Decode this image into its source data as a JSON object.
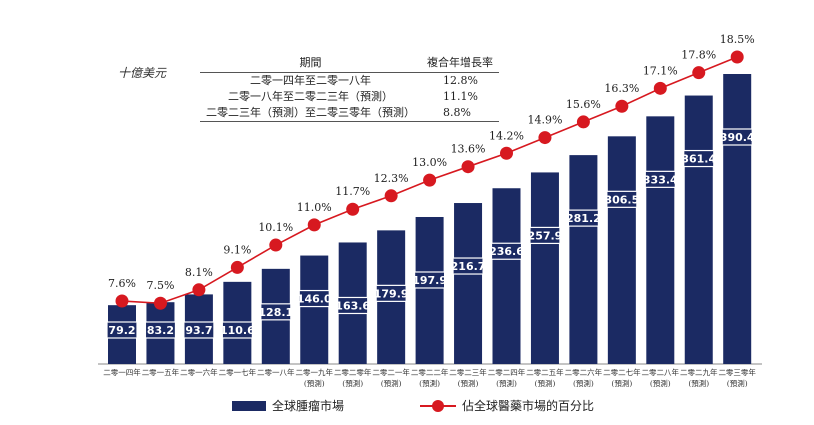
{
  "unit_label": "十億美元",
  "cagr_table": {
    "headers": [
      "期間",
      "複合年增長率"
    ],
    "rows": [
      {
        "period": "二零一四年至二零一八年",
        "rate": "12.8%"
      },
      {
        "period": "二零一八年至二零二三年（預測）",
        "rate": "11.1%"
      },
      {
        "period": "二零二三年（預測）至二零三零年（預測）",
        "rate": "8.8%"
      }
    ]
  },
  "legend": {
    "bar": "全球腫瘤市場",
    "line": "佔全球醫藥市場的百分比"
  },
  "colors": {
    "bar": "#1b2a63",
    "line": "#d71920",
    "bar_label_box": "#ffffff"
  },
  "chart_data": {
    "type": "bar",
    "categories": [
      [
        "二零一四年"
      ],
      [
        "二零一五年"
      ],
      [
        "二零一六年"
      ],
      [
        "二零一七年"
      ],
      [
        "二零一八年"
      ],
      [
        "二零一九年",
        "(預測)"
      ],
      [
        "二零二零年",
        "(預測)"
      ],
      [
        "二零二一年",
        "(預測)"
      ],
      [
        "二零二二年",
        "(預測)"
      ],
      [
        "二零二三年",
        "(預測)"
      ],
      [
        "二零二四年",
        "(預測)"
      ],
      [
        "二零二五年",
        "(預測)"
      ],
      [
        "二零二六年",
        "(預測)"
      ],
      [
        "二零二七年",
        "(預測)"
      ],
      [
        "二零二八年",
        "(預測)"
      ],
      [
        "二零二九年",
        "(預測)"
      ],
      [
        "二零三零年",
        "(預測)"
      ]
    ],
    "series": [
      {
        "name": "全球腫瘤市場",
        "type": "bar",
        "unit": "十億美元",
        "values": [
          79.2,
          83.2,
          93.7,
          110.6,
          128.1,
          146.0,
          163.6,
          179.9,
          197.9,
          216.7,
          236.6,
          257.9,
          281.2,
          306.5,
          333.4,
          361.4,
          390.4
        ],
        "labels": [
          "79.2",
          "83.2",
          "93.7",
          "110.6",
          "128.1",
          "146.0",
          "163.6",
          "179.9",
          "197.9",
          "216.7",
          "236.6",
          "257.9",
          "281.2",
          "306.5",
          "333.4",
          "361.4",
          "390.4"
        ]
      },
      {
        "name": "佔全球醫藥市場的百分比",
        "type": "line",
        "unit": "%",
        "values": [
          7.6,
          7.5,
          8.1,
          9.1,
          10.1,
          11.0,
          11.7,
          12.3,
          13.0,
          13.6,
          14.2,
          14.9,
          15.6,
          16.3,
          17.1,
          17.8,
          18.5
        ],
        "labels": [
          "7.6%",
          "7.5%",
          "8.1%",
          "9.1%",
          "10.1%",
          "11.0%",
          "11.7%",
          "12.3%",
          "13.0%",
          "13.6%",
          "14.2%",
          "14.9%",
          "15.6%",
          "16.3%",
          "17.1%",
          "17.8%",
          "18.5%"
        ]
      }
    ],
    "legend_position": "bottom",
    "grid": false
  }
}
